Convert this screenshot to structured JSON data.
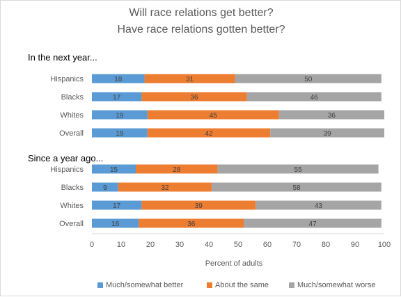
{
  "title_line1": "Will race relations get better?",
  "title_line2": "Have race relations gotten better?",
  "colors": {
    "better": "#5b9bd5",
    "same": "#ed7d31",
    "worse": "#a5a5a5"
  },
  "legend": {
    "better": "Much/somewhat better",
    "same": "About the same",
    "worse": "Much/somewhat worse"
  },
  "chart_data": {
    "type": "bar",
    "orientation": "horizontal",
    "stacked": true,
    "xlabel": "Percent of adults",
    "xlim": [
      0,
      100
    ],
    "xticks": [
      0,
      10,
      20,
      30,
      40,
      50,
      60,
      70,
      80,
      90,
      100
    ],
    "grid": false,
    "legend_position": "bottom",
    "groups": [
      {
        "title": "In the next year...",
        "categories": [
          "Hispanics",
          "Blacks",
          "Whites",
          "Overall"
        ],
        "series": [
          {
            "name": "Much/somewhat better",
            "values": [
              18,
              17,
              19,
              19
            ]
          },
          {
            "name": "About the same",
            "values": [
              31,
              36,
              45,
              42
            ]
          },
          {
            "name": "Much/somewhat worse",
            "values": [
              50,
              46,
              36,
              39
            ]
          }
        ]
      },
      {
        "title": "Since a year ago...",
        "categories": [
          "Hispanics",
          "Blacks",
          "Whites",
          "Overall"
        ],
        "series": [
          {
            "name": "Much/somewhat better",
            "values": [
              15,
              9,
              17,
              16
            ]
          },
          {
            "name": "About the same",
            "values": [
              28,
              32,
              39,
              36
            ]
          },
          {
            "name": "Much/somewhat worse",
            "values": [
              55,
              58,
              43,
              47
            ]
          }
        ]
      }
    ]
  }
}
